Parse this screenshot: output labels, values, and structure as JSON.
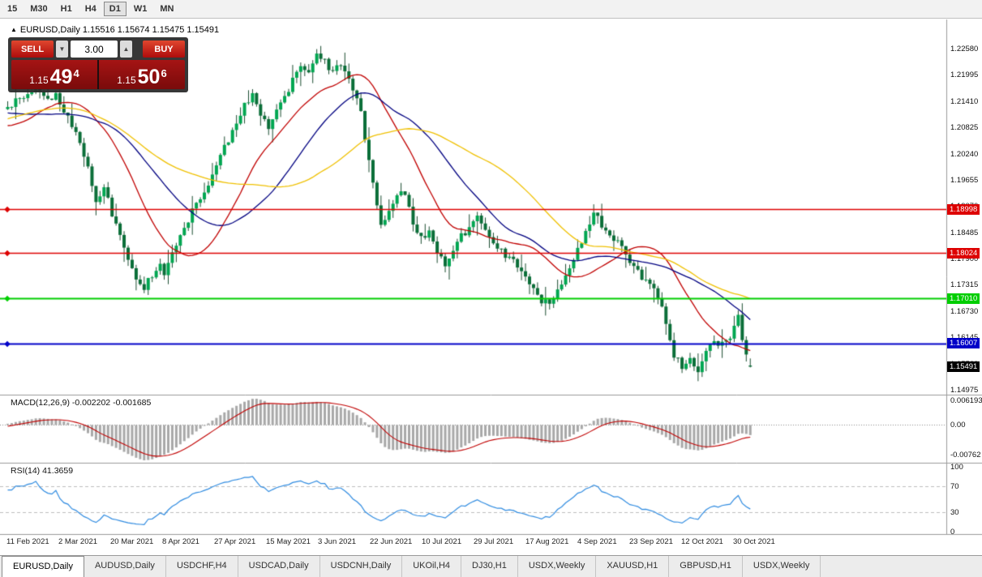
{
  "icons": {
    "symbol_marker": "▲",
    "volume_down": "▼",
    "volume_up": "▲"
  },
  "toolbar": {
    "timeframes": [
      "15",
      "M30",
      "H1",
      "H4",
      "D1",
      "W1",
      "MN"
    ],
    "selected": "D1"
  },
  "chart": {
    "header": "EURUSD,Daily 1.15516 1.15674 1.15475 1.15491"
  },
  "trade_panel": {
    "sell_label": "SELL",
    "buy_label": "BUY",
    "volume": "3.00",
    "sell_price": {
      "prefix": "1.15",
      "big": "49",
      "sup": "4"
    },
    "buy_price": {
      "prefix": "1.15",
      "big": "50",
      "sup": "6"
    }
  },
  "price_axis": {
    "ticks": [
      "1.22580",
      "1.21995",
      "1.21410",
      "1.20825",
      "1.20240",
      "1.19655",
      "1.19070",
      "1.18485",
      "1.17900",
      "1.17315",
      "1.16730",
      "1.16145",
      "1.15560",
      "1.14975"
    ]
  },
  "hlines": [
    {
      "label": "1.18998",
      "price": 1.18998,
      "color": "#dd0000",
      "width": 1.4
    },
    {
      "label": "1.18024",
      "price": 1.18024,
      "color": "#dd0000",
      "width": 1.4
    },
    {
      "label": "1.17010",
      "price": 1.1701,
      "color": "#00ce00",
      "width": 2
    },
    {
      "label": "1.16007",
      "price": 1.16007,
      "color": "#0000c8",
      "width": 2
    }
  ],
  "current_price": {
    "label": "1.15491",
    "price": 1.15491,
    "color": "#000000"
  },
  "x_axis": {
    "labels": [
      "11 Feb 2021",
      "2 Mar 2021",
      "20 Mar 2021",
      "8 Apr 2021",
      "27 Apr 2021",
      "15 May 2021",
      "3 Jun 2021",
      "22 Jun 2021",
      "10 Jul 2021",
      "29 Jul 2021",
      "17 Aug 2021",
      "4 Sep 2021",
      "23 Sep 2021",
      "12 Oct 2021",
      "30 Oct 2021"
    ]
  },
  "indicators": {
    "macd": {
      "title": "MACD(12,26,9) -0.002202 -0.001685",
      "axis": {
        "max": "0.006193",
        "zero": "0.00",
        "min": "-0.00762"
      }
    },
    "rsi": {
      "title": "RSI(14) 41.3659",
      "axis": [
        "100",
        "70",
        "30",
        "0"
      ],
      "levels": [
        70,
        30
      ]
    }
  },
  "tabs": [
    {
      "label": "EURUSD,Daily",
      "active": true
    },
    {
      "label": "AUDUSD,Daily",
      "active": false
    },
    {
      "label": "USDCHF,H4",
      "active": false
    },
    {
      "label": "USDCAD,Daily",
      "active": false
    },
    {
      "label": "USDCNH,Daily",
      "active": false
    },
    {
      "label": "UKOil,H4",
      "active": false
    },
    {
      "label": "DJ30,H1",
      "active": false
    },
    {
      "label": "USDX,Weekly",
      "active": false
    },
    {
      "label": "XAUUSD,H1",
      "active": false
    },
    {
      "label": "GBPUSD,H1",
      "active": false
    },
    {
      "label": "USDX,Weekly",
      "active": false
    }
  ],
  "chart_data": {
    "type": "candlestick",
    "symbol": "EURUSD",
    "timeframe": "Daily",
    "title": "EURUSD,Daily",
    "ylim": [
      1.14975,
      1.2258
    ],
    "grid": false,
    "visible_bars": 186,
    "last_candle": {
      "open": 1.15516,
      "high": 1.15674,
      "low": 1.15475,
      "close": 1.15491
    },
    "close_path_anchors": [
      [
        -60,
        1.196
      ],
      [
        -50,
        1.203
      ],
      [
        -40,
        1.212
      ],
      [
        -30,
        1.218
      ],
      [
        -20,
        1.212
      ],
      [
        -12,
        1.204
      ],
      [
        -6,
        1.209
      ],
      [
        0,
        1.2127
      ],
      [
        4,
        1.215
      ],
      [
        7,
        1.2172
      ],
      [
        10,
        1.214
      ],
      [
        12,
        1.216
      ],
      [
        16,
        1.209
      ],
      [
        18,
        1.2045
      ],
      [
        20,
        1.199
      ],
      [
        22,
        1.192
      ],
      [
        24,
        1.1947
      ],
      [
        26,
        1.189
      ],
      [
        28,
        1.184
      ],
      [
        30,
        1.1785
      ],
      [
        32,
        1.174
      ],
      [
        34,
        1.172
      ],
      [
        36,
        1.1755
      ],
      [
        38,
        1.177
      ],
      [
        39,
        1.175
      ],
      [
        41,
        1.1803
      ],
      [
        43,
        1.184
      ],
      [
        45,
        1.1875
      ],
      [
        47,
        1.1911
      ],
      [
        49,
        1.1938
      ],
      [
        51,
        1.1974
      ],
      [
        53,
        1.2019
      ],
      [
        55,
        1.2055
      ],
      [
        57,
        1.21
      ],
      [
        59,
        1.2136
      ],
      [
        61,
        1.2154
      ],
      [
        63,
        1.2109
      ],
      [
        65,
        1.2082
      ],
      [
        67,
        1.2127
      ],
      [
        69,
        1.2145
      ],
      [
        71,
        1.219
      ],
      [
        73,
        1.2217
      ],
      [
        75,
        1.2199
      ],
      [
        77,
        1.2244
      ],
      [
        79,
        1.2226
      ],
      [
        81,
        1.2208
      ],
      [
        83,
        1.2217
      ],
      [
        85,
        1.219
      ],
      [
        87,
        1.2145
      ],
      [
        88,
        1.2118
      ],
      [
        90,
        1.2001
      ],
      [
        92,
        1.1911
      ],
      [
        93,
        1.1866
      ],
      [
        95,
        1.1893
      ],
      [
        97,
        1.1929
      ],
      [
        99,
        1.1938
      ],
      [
        101,
        1.1875
      ],
      [
        103,
        1.1839
      ],
      [
        105,
        1.1848
      ],
      [
        107,
        1.1803
      ],
      [
        109,
        1.1776
      ],
      [
        111,
        1.1812
      ],
      [
        113,
        1.1839
      ],
      [
        115,
        1.1857
      ],
      [
        117,
        1.1884
      ],
      [
        119,
        1.1848
      ],
      [
        121,
        1.1821
      ],
      [
        123,
        1.1803
      ],
      [
        125,
        1.1794
      ],
      [
        127,
        1.1767
      ],
      [
        129,
        1.1749
      ],
      [
        131,
        1.1722
      ],
      [
        133,
        1.1695
      ],
      [
        135,
        1.1686
      ],
      [
        137,
        1.1722
      ],
      [
        139,
        1.1749
      ],
      [
        141,
        1.1785
      ],
      [
        143,
        1.183
      ],
      [
        145,
        1.1875
      ],
      [
        146,
        1.1902
      ],
      [
        147,
        1.1884
      ],
      [
        149,
        1.1848
      ],
      [
        151,
        1.183
      ],
      [
        153,
        1.1821
      ],
      [
        155,
        1.1785
      ],
      [
        157,
        1.1758
      ],
      [
        159,
        1.174
      ],
      [
        161,
        1.1722
      ],
      [
        163,
        1.1677
      ],
      [
        165,
        1.1605
      ],
      [
        166,
        1.1569
      ],
      [
        168,
        1.1551
      ],
      [
        170,
        1.156
      ],
      [
        172,
        1.1533
      ],
      [
        174,
        1.1587
      ],
      [
        176,
        1.1605
      ],
      [
        178,
        1.1596
      ],
      [
        180,
        1.1614
      ],
      [
        181,
        1.1641
      ],
      [
        182,
        1.1668
      ],
      [
        183,
        1.1605
      ],
      [
        184,
        1.1575
      ],
      [
        185,
        1.15491
      ]
    ],
    "moving_averages": [
      {
        "period": 20,
        "color": "#c00000"
      },
      {
        "period": 35,
        "color": "#000080"
      },
      {
        "period": 55,
        "color": "#efc000"
      }
    ],
    "hlines": [
      1.18998,
      1.18024,
      1.1701,
      1.16007
    ],
    "macd": {
      "fast": 12,
      "slow": 26,
      "signal": 9,
      "last_main": -0.002202,
      "last_signal": -0.001685,
      "axis_max": 0.006193,
      "axis_min": -0.00762
    },
    "rsi": {
      "period": 14,
      "last": 41.3659,
      "levels": [
        70,
        30
      ]
    },
    "x_labels": [
      "11 Feb 2021",
      "2 Mar 2021",
      "20 Mar 2021",
      "8 Apr 2021",
      "27 Apr 2021",
      "15 May 2021",
      "3 Jun 2021",
      "22 Jun 2021",
      "10 Jul 2021",
      "29 Jul 2021",
      "17 Aug 2021",
      "4 Sep 2021",
      "23 Sep 2021",
      "12 Oct 2021",
      "30 Oct 2021"
    ]
  }
}
